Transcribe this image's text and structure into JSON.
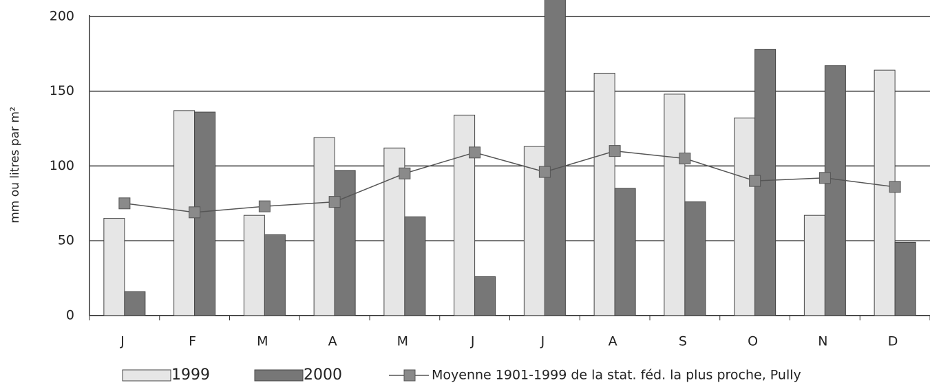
{
  "chart_data": {
    "type": "bar",
    "y_axis_label": "mm ou litres par m²",
    "categories": [
      "J",
      "F",
      "M",
      "A",
      "M",
      "J",
      "J",
      "A",
      "S",
      "O",
      "N",
      "D"
    ],
    "series": [
      {
        "name": "1999",
        "color": "#e6e6e6",
        "values": [
          65,
          137,
          67,
          119,
          112,
          134,
          113,
          162,
          148,
          132,
          67,
          164
        ]
      },
      {
        "name": "2000",
        "color": "#777777",
        "values": [
          16,
          136,
          54,
          97,
          66,
          26,
          218,
          85,
          76,
          178,
          167,
          49
        ]
      },
      {
        "name": "Moyenne 1901-1999 de la stat. féd. la plus proche, Pully",
        "color": "#555555",
        "type": "line",
        "values": [
          75,
          69,
          73,
          76,
          95,
          109,
          96,
          110,
          105,
          90,
          92,
          86
        ]
      }
    ],
    "ylim": [
      0,
      210
    ],
    "yticks": [
      0,
      50,
      100,
      150,
      200
    ],
    "grid": true
  }
}
